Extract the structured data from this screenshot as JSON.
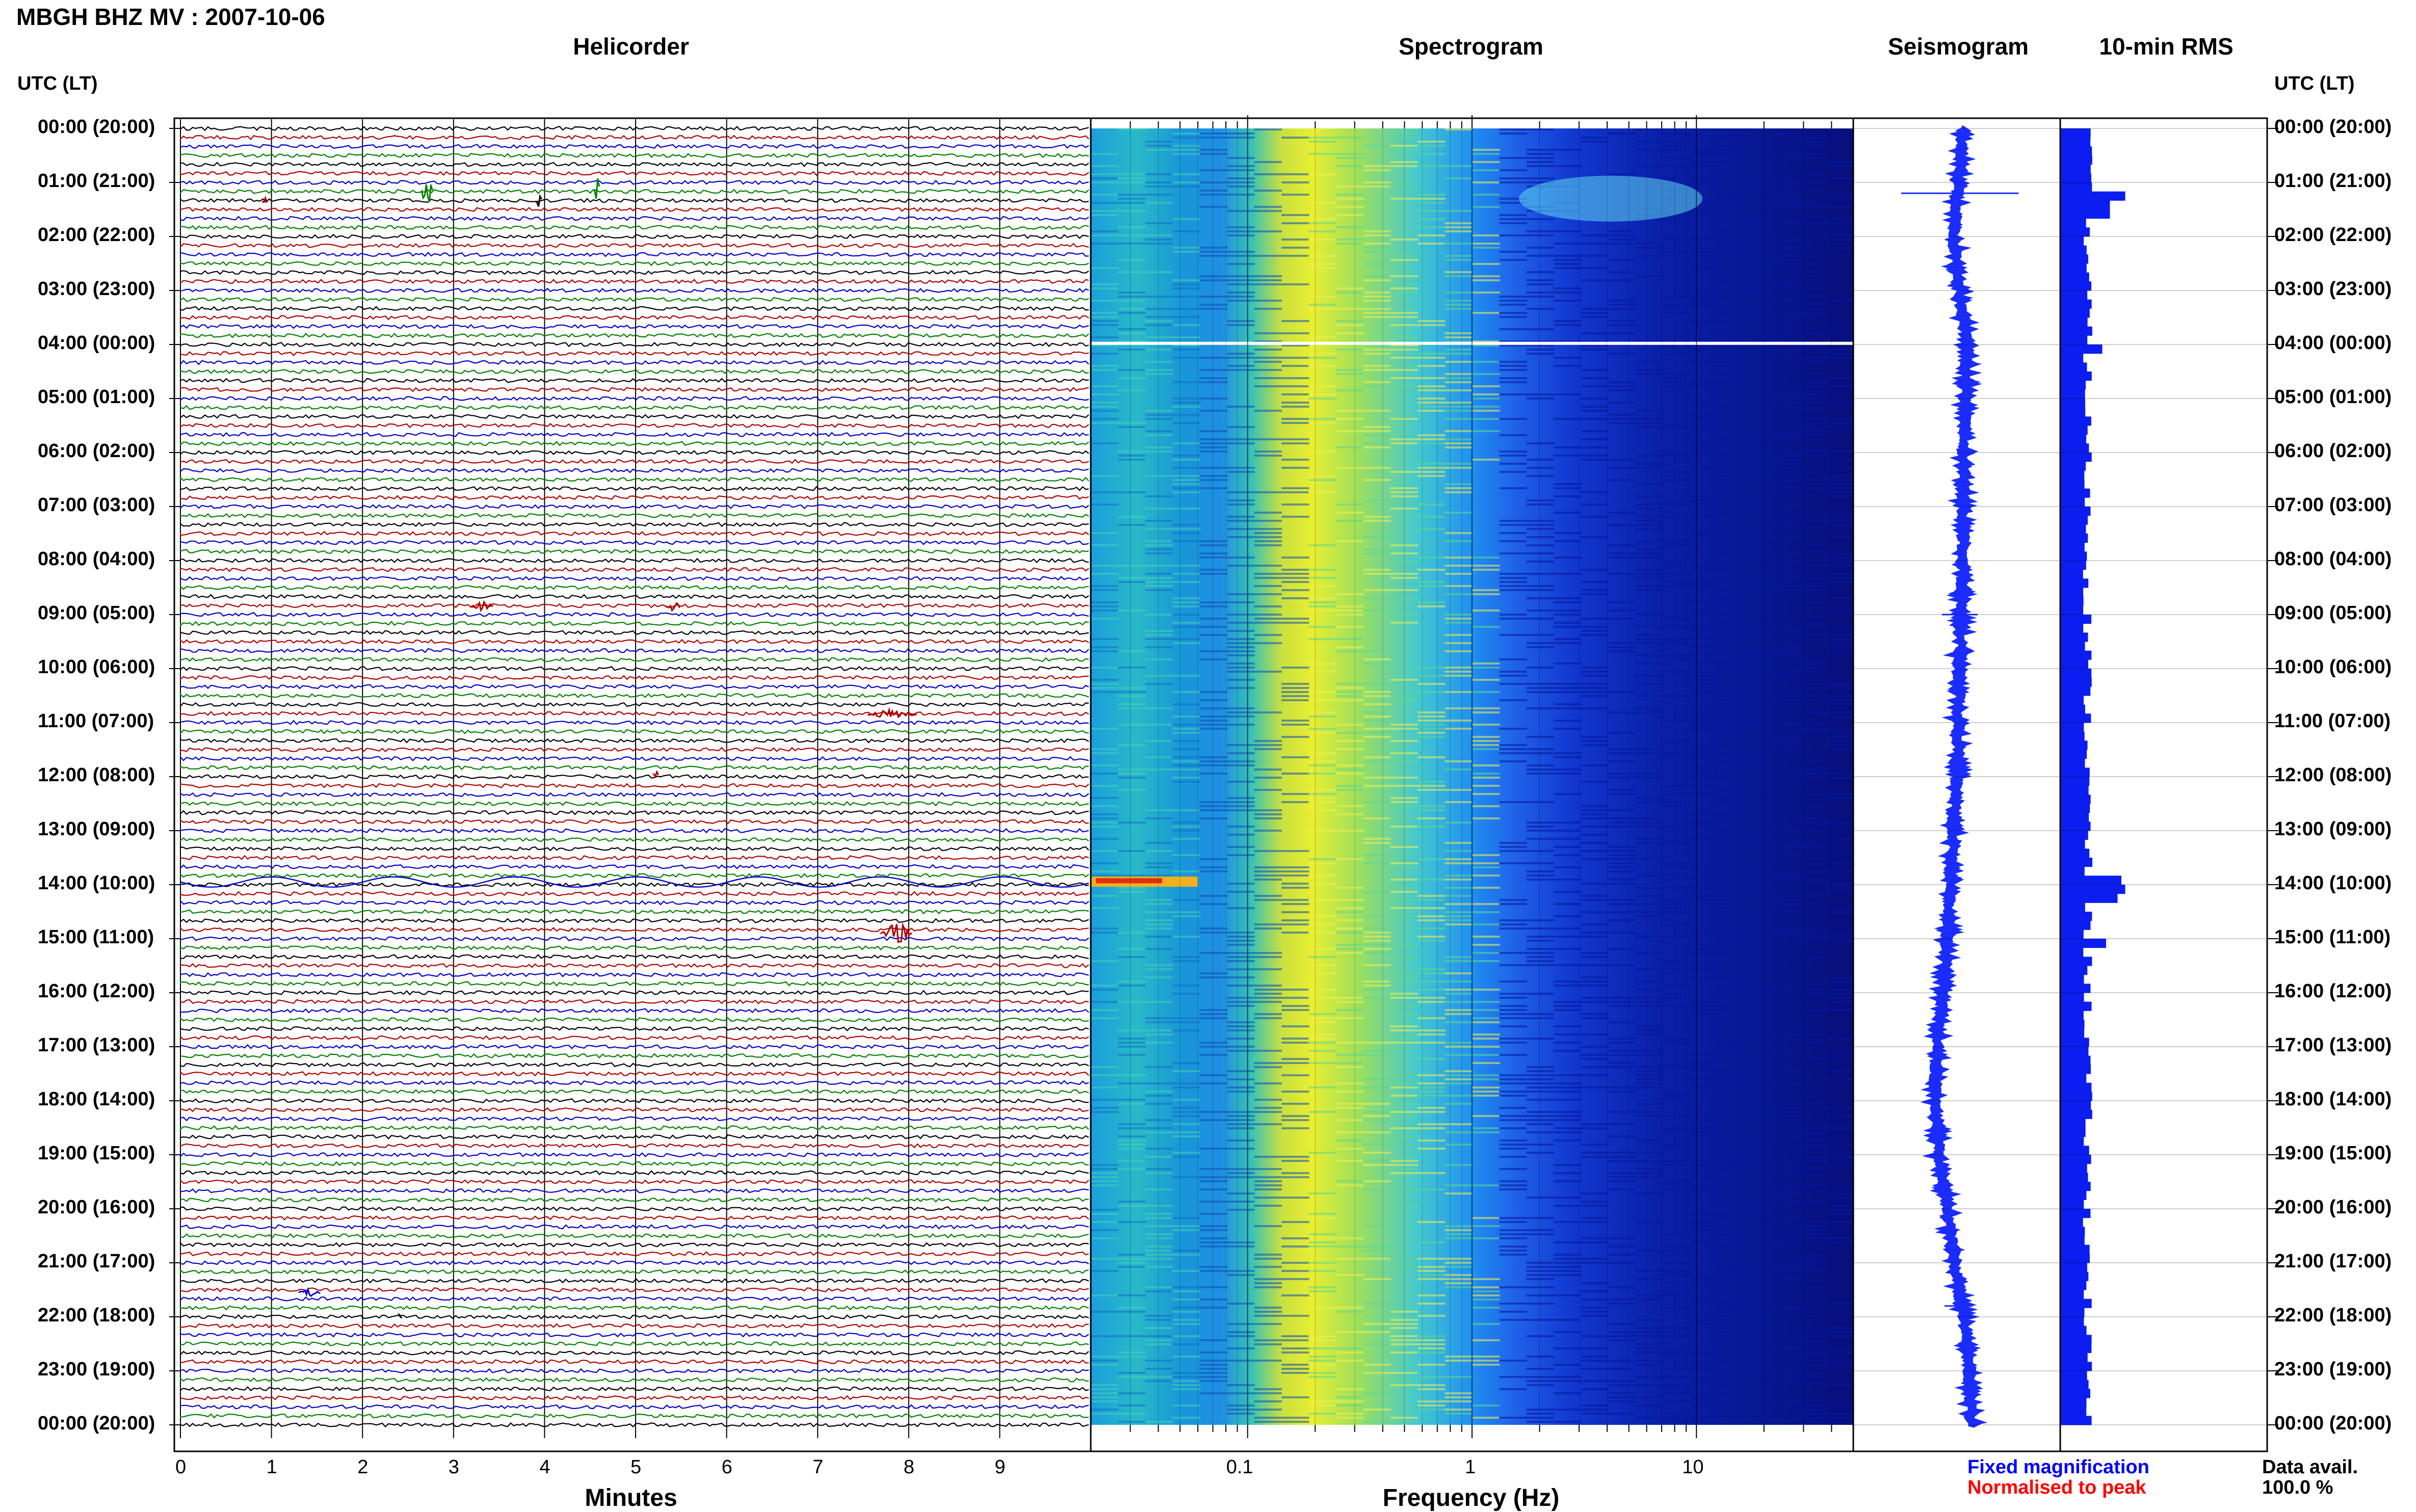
{
  "header": {
    "title": "MBGH BHZ MV : 2007-10-06"
  },
  "panels": {
    "helicorder": "Helicorder",
    "spectrogram": "Spectrogram",
    "seismogram": "Seismogram",
    "rms": "10-min RMS"
  },
  "axes": {
    "time_header_left": "UTC (LT)",
    "time_header_right": "UTC (LT)",
    "helicorder_xlabel": "Minutes",
    "spectrogram_xlabel": "Frequency (Hz)"
  },
  "legend": {
    "fixed": "Fixed magnification",
    "normalised": "Normalised to peak",
    "fixed_color": "#0000ff",
    "normalised_color": "#ff0000"
  },
  "data_avail": {
    "label": "Data avail.",
    "value": "100.0 %"
  },
  "colors": {
    "trace_cycle": [
      "#000000",
      "#b00000",
      "#0000c8",
      "#008000"
    ],
    "seismogram": "#1a2cff",
    "rms_bar": "#0b1df0"
  },
  "chart_data": [
    {
      "type": "line",
      "title": "Helicorder",
      "xlabel": "Minutes",
      "x_ticks": [
        "0",
        "1",
        "2",
        "3",
        "4",
        "5",
        "6",
        "7",
        "8",
        "9"
      ],
      "xlim": [
        0,
        10
      ],
      "y_ticks": [
        "00:00 (20:00)",
        "01:00 (21:00)",
        "02:00 (22:00)",
        "03:00 (23:00)",
        "04:00 (00:00)",
        "05:00 (01:00)",
        "06:00 (02:00)",
        "07:00 (03:00)",
        "08:00 (04:00)",
        "09:00 (05:00)",
        "10:00 (06:00)",
        "11:00 (07:00)",
        "12:00 (08:00)",
        "13:00 (09:00)",
        "14:00 (10:00)",
        "15:00 (11:00)",
        "16:00 (12:00)",
        "17:00 (13:00)",
        "18:00 (14:00)",
        "19:00 (15:00)",
        "20:00 (16:00)",
        "21:00 (17:00)",
        "22:00 (18:00)",
        "23:00 (19:00)",
        "00:00 (20:00)"
      ],
      "traces_per_hour": 6,
      "ylim_hours": [
        0,
        24
      ]
    },
    {
      "type": "heatmap",
      "title": "Spectrogram",
      "xlabel": "Frequency (Hz)",
      "x_scale": "log",
      "xlim": [
        0.02,
        50
      ],
      "x_ticks": [
        "0.1",
        "1",
        "10"
      ],
      "ylim_hours": [
        0,
        24
      ],
      "colormap": "jet"
    },
    {
      "type": "line",
      "title": "Seismogram",
      "ylim_hours": [
        0,
        24
      ],
      "drift_hours": [
        0,
        2,
        4,
        6,
        8,
        10,
        12,
        13,
        14,
        15,
        16,
        17,
        18,
        19,
        20,
        21,
        22,
        23,
        24
      ],
      "drift_values": [
        0.0,
        -0.5,
        0.2,
        0.0,
        0.0,
        -0.2,
        -0.3,
        -0.5,
        -0.6,
        -0.8,
        -1.0,
        -1.3,
        -1.4,
        -1.2,
        -0.8,
        -0.4,
        0.0,
        0.3,
        0.4
      ]
    },
    {
      "type": "bar",
      "title": "10-min RMS",
      "ylim_hours": [
        0,
        24
      ],
      "spikes_hours": [
        1.2,
        1.4,
        4.0,
        13.8,
        14.0,
        14.2,
        15.0
      ],
      "spike_values": [
        0.85,
        0.65,
        0.55,
        0.8,
        0.85,
        0.75,
        0.6
      ],
      "baseline": 0.35
    }
  ]
}
